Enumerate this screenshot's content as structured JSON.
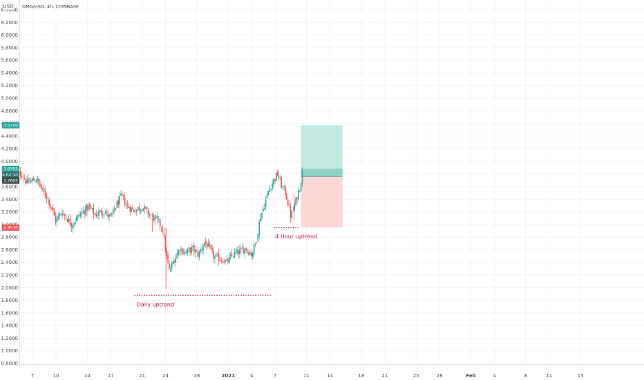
{
  "header": {
    "currency_label": "USD",
    "symbol_line": "OMG/USD, 4h, COINBASE"
  },
  "colors": {
    "up": "#26a69a",
    "down": "#ef5350",
    "grid": "#f0f3fa",
    "tp_fill": "#b9e5de",
    "tp_line": "#26a69a",
    "sl_fill": "#fbd0cf",
    "sl_line": "#ef5350",
    "annotation": "#c2185b",
    "tag_green": "#26a69a",
    "tag_teal_dark": "#2d6e66",
    "tag_dark": "#3b4a48",
    "tag_red": "#ef5350"
  },
  "chart_data": {
    "type": "candlestick",
    "yaxis": {
      "ticks": [
        "6.4000",
        "6.2000",
        "6.0000",
        "5.8000",
        "5.6000",
        "5.4000",
        "5.2000",
        "5.0000",
        "4.8000",
        "4.6000",
        "4.4000",
        "4.2000",
        "4.0000",
        "3.8000",
        "3.6000",
        "3.4000",
        "3.2000",
        "3.0000",
        "2.8000",
        "2.6000",
        "2.4000",
        "2.2000",
        "2.0000",
        "1.8000",
        "1.6000",
        "1.4000",
        "1.2000",
        "1.0000",
        "0.8000"
      ],
      "ylim": [
        0.8,
        6.4
      ]
    },
    "xaxis": {
      "labels": [
        "7",
        "10",
        "14",
        "17",
        "21",
        "24",
        "28",
        "2021",
        "4",
        "7",
        "11",
        "14",
        "18",
        "21",
        "25",
        "28",
        "Feb",
        "4",
        "8",
        "11",
        "15"
      ],
      "label_days": [
        7,
        10,
        14,
        17,
        21,
        24,
        28,
        32,
        35,
        38,
        42,
        45,
        49,
        52,
        56,
        59,
        63,
        66,
        70,
        73,
        77
      ]
    },
    "price_tags": [
      {
        "value": "4.5700",
        "role": "take-profit"
      },
      {
        "value": "3.8793",
        "role": "last-price"
      },
      {
        "value": "03:02:10",
        "role": "countdown"
      },
      {
        "value": "3.7605",
        "role": "entry"
      },
      {
        "value": "2.9510",
        "role": "stop-loss"
      }
    ],
    "position": {
      "start_day": 41.3,
      "end_day": 46.6,
      "take_profit": 4.57,
      "last": 3.8793,
      "entry": 3.7605,
      "stop_loss": 2.951
    },
    "annotations": [
      {
        "text": "4 Hour uptrend",
        "line_y": 2.95,
        "day_start": 37.8,
        "day_end": 41.2,
        "text_day": 38.0,
        "text_y": 2.78
      },
      {
        "text": "Daily uptrend",
        "line_y": 1.88,
        "day_start": 20.0,
        "day_end": 37.5,
        "text_day": 20.3,
        "text_y": 1.7
      }
    ],
    "series_knots": [
      [
        4.8,
        3.72
      ],
      [
        5.5,
        3.82
      ],
      [
        6.3,
        3.66
      ],
      [
        7.5,
        3.72
      ],
      [
        8.2,
        3.55
      ],
      [
        8.9,
        3.42
      ],
      [
        9.5,
        3.25
      ],
      [
        10.0,
        3.05
      ],
      [
        10.7,
        3.2
      ],
      [
        11.4,
        3.1
      ],
      [
        12.0,
        3.0
      ],
      [
        13.0,
        3.15
      ],
      [
        14.2,
        3.28
      ],
      [
        15.0,
        3.15
      ],
      [
        16.0,
        3.22
      ],
      [
        17.0,
        3.1
      ],
      [
        17.6,
        3.28
      ],
      [
        18.4,
        3.45
      ],
      [
        19.0,
        3.3
      ],
      [
        20.0,
        3.22
      ],
      [
        21.0,
        3.28
      ],
      [
        22.0,
        3.15
      ],
      [
        23.0,
        3.05
      ],
      [
        23.6,
        2.95
      ],
      [
        24.1,
        2.5
      ],
      [
        24.5,
        2.25
      ],
      [
        25.0,
        2.42
      ],
      [
        25.8,
        2.62
      ],
      [
        26.5,
        2.55
      ],
      [
        27.4,
        2.62
      ],
      [
        28.2,
        2.52
      ],
      [
        29.0,
        2.72
      ],
      [
        29.6,
        2.62
      ],
      [
        30.2,
        2.48
      ],
      [
        31.2,
        2.45
      ],
      [
        31.8,
        2.4
      ],
      [
        32.6,
        2.52
      ],
      [
        33.6,
        2.58
      ],
      [
        34.3,
        2.62
      ],
      [
        35.0,
        2.52
      ],
      [
        35.6,
        2.75
      ],
      [
        36.1,
        3.12
      ],
      [
        36.6,
        3.3
      ],
      [
        37.2,
        3.55
      ],
      [
        37.8,
        3.7
      ],
      [
        38.3,
        3.8
      ],
      [
        38.8,
        3.62
      ],
      [
        39.4,
        3.48
      ],
      [
        40.0,
        3.12
      ],
      [
        40.6,
        3.35
      ],
      [
        41.2,
        3.62
      ],
      [
        41.5,
        3.85
      ]
    ]
  }
}
